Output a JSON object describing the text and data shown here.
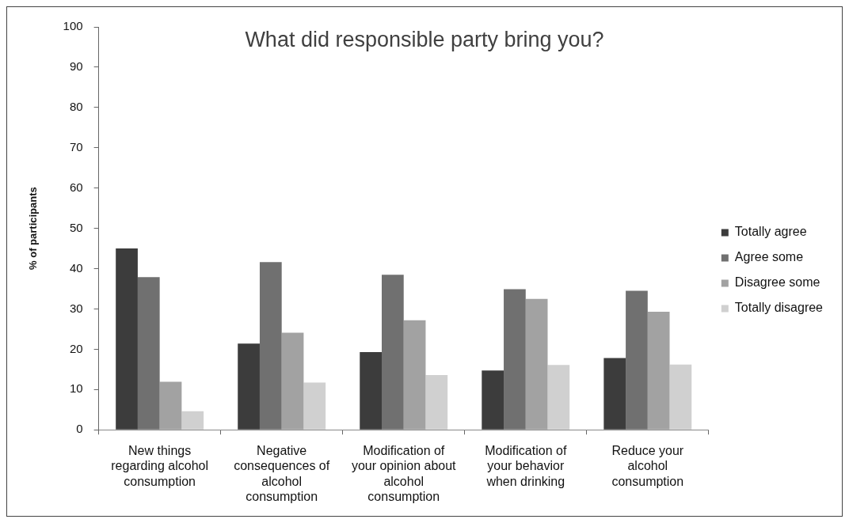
{
  "chart_data": {
    "type": "bar",
    "title": "What did responsible party bring you?",
    "ylabel": "% of participants",
    "categories": [
      "New things regarding alcohol consumption",
      "Negative consequences of alcohol consumption",
      "Modification of your opinion about alcohol consumption",
      "Modification of your behavior when drinking",
      "Reduce your alcohol consumption"
    ],
    "series": [
      {
        "name": "Totally agree",
        "color": "#3c3c3c",
        "values": [
          45,
          21.4,
          19.3,
          14.7,
          17.8
        ]
      },
      {
        "name": "Agree some",
        "color": "#707070",
        "values": [
          37.9,
          41.6,
          38.5,
          34.9,
          34.5
        ]
      },
      {
        "name": "Disagree some",
        "color": "#a2a2a2",
        "values": [
          11.9,
          24.1,
          27.2,
          32.5,
          29.3
        ]
      },
      {
        "name": "Totally disagree",
        "color": "#d0d0d0",
        "values": [
          4.6,
          11.7,
          13.6,
          16.1,
          16.2
        ]
      }
    ],
    "ylim": [
      0,
      100
    ],
    "yticks": [
      0,
      10,
      20,
      30,
      40,
      50,
      60,
      70,
      80,
      90,
      100
    ],
    "grid": false,
    "legend": "right"
  }
}
